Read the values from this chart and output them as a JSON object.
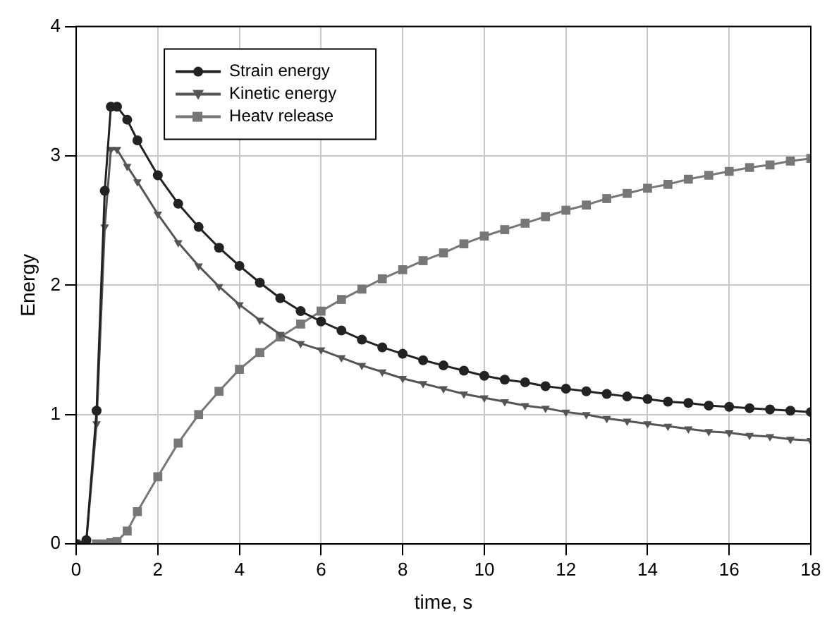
{
  "chart_data": {
    "type": "line",
    "xlabel": "time, s",
    "ylabel": "Energy",
    "x": [
      0,
      0.25,
      0.5,
      0.7,
      0.85,
      1,
      1.25,
      1.5,
      2,
      2.5,
      3,
      3.5,
      4,
      4.5,
      5,
      5.5,
      6,
      6.5,
      7,
      7.5,
      8,
      8.5,
      9,
      9.5,
      10,
      10.5,
      11,
      11.5,
      12,
      12.5,
      13,
      13.5,
      14,
      14.5,
      15,
      15.5,
      16,
      16.5,
      17,
      17.5,
      18
    ],
    "series": [
      {
        "name": "Strain energy",
        "color": "#222222",
        "marker": "circle",
        "values": [
          0,
          0.03,
          1.03,
          2.73,
          3.38,
          3.38,
          3.28,
          3.12,
          2.85,
          2.63,
          2.45,
          2.29,
          2.15,
          2.02,
          1.9,
          1.8,
          1.72,
          1.65,
          1.58,
          1.52,
          1.47,
          1.42,
          1.38,
          1.34,
          1.3,
          1.27,
          1.25,
          1.22,
          1.2,
          1.18,
          1.16,
          1.14,
          1.12,
          1.1,
          1.09,
          1.07,
          1.06,
          1.05,
          1.04,
          1.03,
          1.02
        ]
      },
      {
        "name": "Kinetic energy",
        "color": "#555555",
        "marker": "triangle",
        "values": [
          0,
          0.02,
          0.93,
          2.45,
          3.05,
          3.05,
          2.92,
          2.8,
          2.55,
          2.33,
          2.15,
          1.99,
          1.85,
          1.73,
          1.62,
          1.55,
          1.5,
          1.44,
          1.38,
          1.33,
          1.28,
          1.24,
          1.2,
          1.16,
          1.13,
          1.1,
          1.07,
          1.05,
          1.02,
          1.0,
          0.97,
          0.95,
          0.93,
          0.91,
          0.89,
          0.87,
          0.86,
          0.84,
          0.83,
          0.81,
          0.8
        ]
      },
      {
        "name": "Heatv release",
        "color": "#777777",
        "marker": "square",
        "values": [
          0,
          0,
          0,
          0,
          0.01,
          0.02,
          0.1,
          0.25,
          0.52,
          0.78,
          1.0,
          1.18,
          1.35,
          1.48,
          1.6,
          1.7,
          1.8,
          1.89,
          1.97,
          2.05,
          2.12,
          2.19,
          2.25,
          2.32,
          2.38,
          2.43,
          2.48,
          2.53,
          2.58,
          2.62,
          2.67,
          2.71,
          2.75,
          2.78,
          2.82,
          2.85,
          2.88,
          2.91,
          2.93,
          2.96,
          2.98
        ]
      }
    ],
    "xlim": [
      0,
      18
    ],
    "xticks": [
      0,
      2,
      4,
      6,
      8,
      10,
      12,
      14,
      16,
      18
    ],
    "ylim": [
      0,
      4
    ],
    "yticks": [
      0,
      1,
      2,
      3,
      4
    ],
    "grid": true,
    "legend": "top left",
    "line_style": "solid"
  }
}
